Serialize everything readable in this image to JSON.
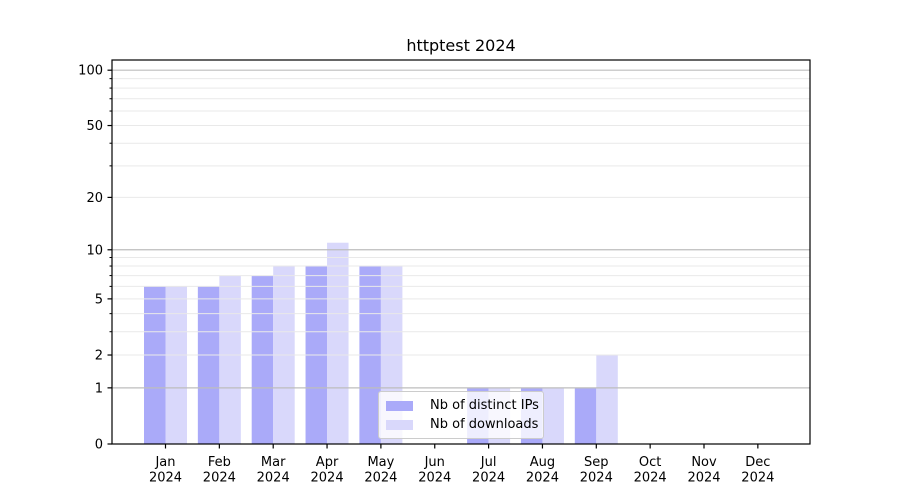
{
  "chart_data": {
    "type": "bar",
    "title": "httptest 2024",
    "categories": [
      "Jan",
      "Feb",
      "Mar",
      "Apr",
      "May",
      "Jun",
      "Jul",
      "Aug",
      "Sep",
      "Oct",
      "Nov",
      "Dec"
    ],
    "category_year": "2024",
    "series": [
      {
        "name": "Nb of distinct IPs",
        "color": "#aaaaf9",
        "values": [
          6,
          6,
          7,
          8,
          8,
          0,
          1,
          1,
          1,
          0,
          0,
          0
        ]
      },
      {
        "name": "Nb of downloads",
        "color": "#d9d8fb",
        "values": [
          6,
          7,
          8,
          11,
          8,
          0,
          1,
          1,
          2,
          0,
          0,
          0
        ]
      }
    ],
    "xlabel": "",
    "ylabel": "",
    "yscale": "log10(1+y)",
    "ylim": [
      0,
      114
    ],
    "y_major_ticks": [
      0,
      1,
      2,
      5,
      10,
      20,
      50,
      100
    ],
    "y_minor_ticks": [
      3,
      4,
      6,
      7,
      8,
      9,
      30,
      40,
      60,
      70,
      80,
      90
    ],
    "y_major_gridlines": [
      1,
      10,
      100
    ],
    "y_minor_gridlines": [
      2,
      3,
      4,
      5,
      6,
      7,
      8,
      9,
      20,
      30,
      40,
      50,
      60,
      70,
      80,
      90
    ],
    "grid": "on",
    "grid_above_bars": true,
    "legend_position": "lower center"
  },
  "colors": {
    "background": "#ffffff",
    "axis": "#000000",
    "tick_text": "#000000",
    "major_grid": "#bdbdbd",
    "minor_grid": "#e9e9e9"
  }
}
